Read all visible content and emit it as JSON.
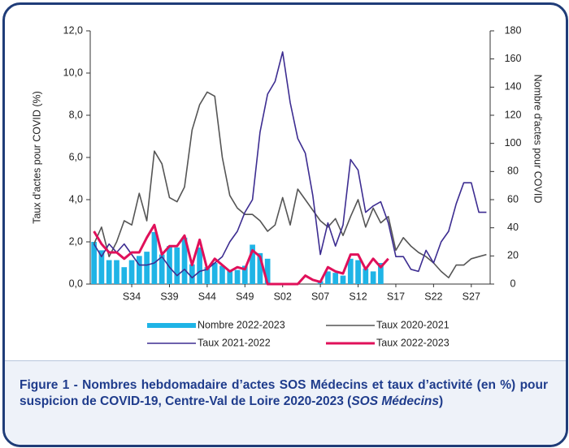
{
  "chart_data": {
    "type": "combo",
    "categories": [
      null,
      null,
      null,
      null,
      null,
      "S34",
      null,
      null,
      null,
      null,
      "S39",
      null,
      null,
      null,
      null,
      "S44",
      null,
      null,
      null,
      null,
      "S49",
      null,
      null,
      null,
      null,
      "S02",
      null,
      null,
      null,
      null,
      "S07",
      null,
      null,
      null,
      null,
      "S12",
      null,
      null,
      null,
      null,
      "S17",
      null,
      null,
      null,
      null,
      "S22",
      null,
      null,
      null,
      null,
      "S27",
      null,
      null
    ],
    "y_label": "Taux d'actes pour COVID (%)",
    "y2_label": "Nombre d'actes pour COVID",
    "ylim": [
      0,
      12
    ],
    "yticks": [
      {
        "value": 0,
        "label": "0,0"
      },
      {
        "value": 2,
        "label": "2,0"
      },
      {
        "value": 4,
        "label": "4,0"
      },
      {
        "value": 6,
        "label": "6,0"
      },
      {
        "value": 8,
        "label": "8,0"
      },
      {
        "value": 10,
        "label": "10,0"
      },
      {
        "value": 12,
        "label": "12,0"
      }
    ],
    "y2lim": [
      0,
      180
    ],
    "y2ticks": [
      0,
      20,
      40,
      60,
      80,
      100,
      120,
      140,
      160,
      180
    ],
    "series": [
      {
        "name": "Nombre 2022-2023",
        "type": "bar",
        "axis": "y2",
        "color": "#1fb4e6",
        "values": [
          30,
          24,
          17,
          17,
          12,
          17,
          20,
          23,
          37,
          21,
          27,
          26,
          33,
          14,
          26,
          12,
          15,
          13,
          10,
          10,
          13,
          28,
          22,
          18,
          0,
          0,
          0,
          0,
          0,
          0,
          2,
          9,
          8,
          6,
          18,
          17,
          11,
          9,
          15,
          null,
          null,
          null,
          null,
          null,
          null,
          null,
          null,
          null,
          null,
          null,
          null,
          null,
          null
        ]
      },
      {
        "name": "Taux 2020-2021",
        "type": "line",
        "color": "#555555",
        "values": [
          1.9,
          2.7,
          1.3,
          2.0,
          3.0,
          2.8,
          4.3,
          3.0,
          6.3,
          5.7,
          4.1,
          3.9,
          4.6,
          7.3,
          8.5,
          9.1,
          8.9,
          6.0,
          4.2,
          3.6,
          3.3,
          3.3,
          3.0,
          2.5,
          2.8,
          4.1,
          2.8,
          4.5,
          4.0,
          3.5,
          3.0,
          2.7,
          3.1,
          2.3,
          3.2,
          4.0,
          2.7,
          3.6,
          2.9,
          3.2,
          1.6,
          2.2,
          1.8,
          1.5,
          1.3,
          1.0,
          0.6,
          0.3,
          0.9,
          0.9,
          1.2,
          1.3,
          1.4
        ]
      },
      {
        "name": "Taux 2021-2022",
        "type": "line",
        "color": "#3d2d91",
        "values": [
          1.9,
          1.3,
          1.9,
          1.5,
          1.9,
          1.4,
          0.9,
          0.9,
          1.0,
          1.3,
          0.8,
          0.4,
          0.7,
          0.3,
          0.6,
          0.7,
          1.0,
          1.3,
          2.0,
          2.5,
          3.4,
          4.0,
          7.2,
          9.0,
          9.6,
          11.0,
          8.6,
          6.9,
          6.2,
          4.2,
          1.4,
          2.9,
          1.8,
          2.8,
          5.9,
          5.4,
          3.4,
          3.7,
          3.9,
          2.9,
          1.3,
          1.3,
          0.7,
          0.6,
          1.6,
          1.0,
          2.0,
          2.5,
          3.8,
          4.8,
          4.8,
          3.4,
          3.4
        ]
      },
      {
        "name": "Taux 2022-2023",
        "type": "line",
        "color": "#e0105a",
        "values": [
          2.5,
          1.9,
          1.5,
          1.5,
          1.2,
          1.5,
          1.5,
          2.2,
          2.8,
          1.4,
          1.8,
          1.8,
          2.3,
          0.9,
          2.1,
          0.7,
          1.2,
          0.9,
          0.6,
          0.8,
          0.7,
          1.6,
          1.3,
          0.0,
          0.0,
          0.0,
          0.0,
          0.0,
          0.4,
          0.2,
          0.1,
          0.8,
          0.6,
          0.5,
          1.4,
          1.4,
          0.7,
          1.2,
          0.8,
          1.2,
          null,
          null,
          null,
          null,
          null,
          null,
          null,
          null,
          null,
          null,
          null,
          null,
          null
        ]
      }
    ],
    "caption_lead": "Figure 1 - Nombres hebdomadaire d’actes SOS Médecins et taux d’activité (en %) pour suspicion de COVID-19, Centre-Val de Loire 2020-2023 (",
    "caption_source": "SOS Médecins",
    "caption_tail": ")"
  }
}
